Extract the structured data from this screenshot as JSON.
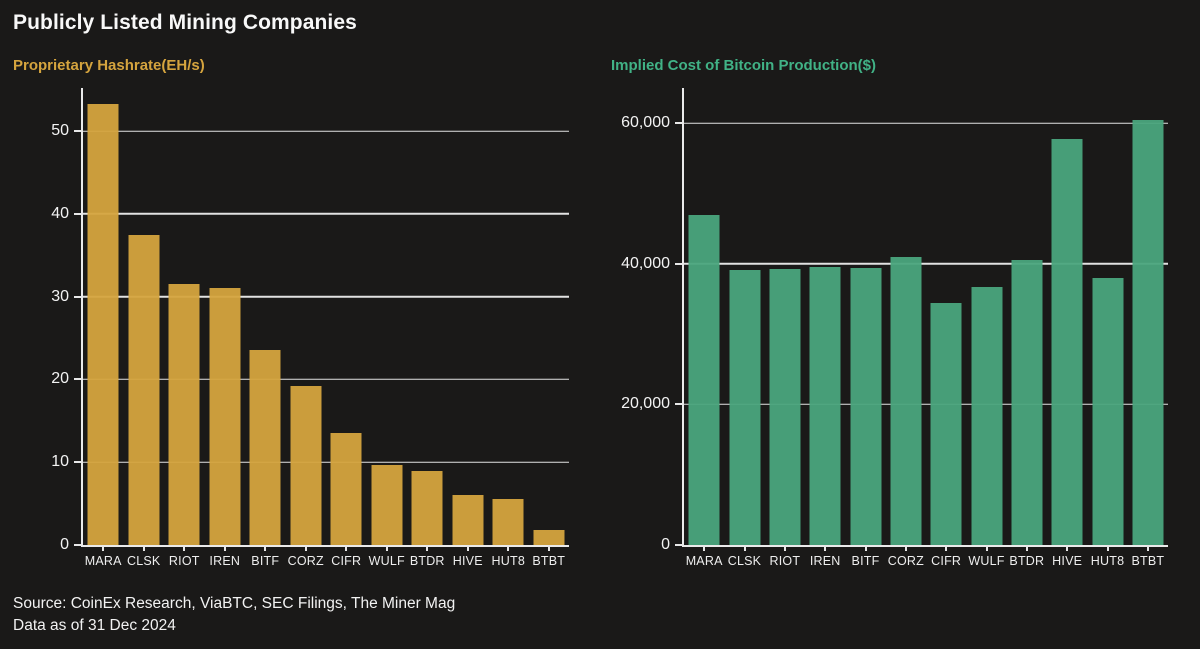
{
  "page": {
    "title": "Publicly Listed Mining Companies",
    "source_line1": "Source: CoinEx Research, ViaBTC, SEC Filings, The Miner Mag",
    "source_line2": "Data as of 31 Dec 2024",
    "background_color": "#1a1918"
  },
  "colors": {
    "gold": "#d5a43e",
    "green": "#4aa57d",
    "green_title": "#41b286",
    "axis": "#eaeaea",
    "text": "#f2f2f2"
  },
  "chart_data": [
    {
      "type": "bar",
      "title": "Proprietary Hashrate(EH/s)",
      "title_color": "#d5a43e",
      "bar_color": "#d5a43e",
      "categories": [
        "MARA",
        "CLSK",
        "RIOT",
        "IREN",
        "BITF",
        "CORZ",
        "CIFR",
        "WULF",
        "BTDR",
        "HIVE",
        "HUT8",
        "BTBT"
      ],
      "values": [
        53.3,
        37.5,
        31.5,
        31.0,
        23.5,
        19.2,
        13.5,
        9.7,
        8.9,
        6.0,
        5.5,
        1.8
      ],
      "xlabel": "",
      "ylabel": "Proprietary Hashrate (EH/s)",
      "ylim": [
        0,
        55.2
      ],
      "grid": "on",
      "legend": "none",
      "ytick_values": [
        0,
        10,
        20,
        30,
        40,
        50
      ],
      "ytick_labels": [
        "0",
        "10",
        "20",
        "30",
        "40",
        "50"
      ]
    },
    {
      "type": "bar",
      "title": "Implied Cost of Bitcoin Production($)",
      "title_color": "#41b286",
      "bar_color": "#4aa57d",
      "categories": [
        "MARA",
        "CLSK",
        "RIOT",
        "IREN",
        "BITF",
        "CORZ",
        "CIFR",
        "WULF",
        "BTDR",
        "HIVE",
        "HUT8",
        "BTBT"
      ],
      "values": [
        47000,
        39100,
        39300,
        39500,
        39400,
        40900,
        34400,
        36700,
        40600,
        57700,
        38000,
        60400
      ],
      "xlabel": "",
      "ylabel": "Implied Cost of Bitcoin Production ($)",
      "ylim": [
        0,
        65000
      ],
      "grid": "on",
      "legend": "none",
      "ytick_values": [
        0,
        20000,
        40000,
        60000
      ],
      "ytick_labels": [
        "0",
        "20,000",
        "40,000",
        "60,000"
      ]
    }
  ]
}
